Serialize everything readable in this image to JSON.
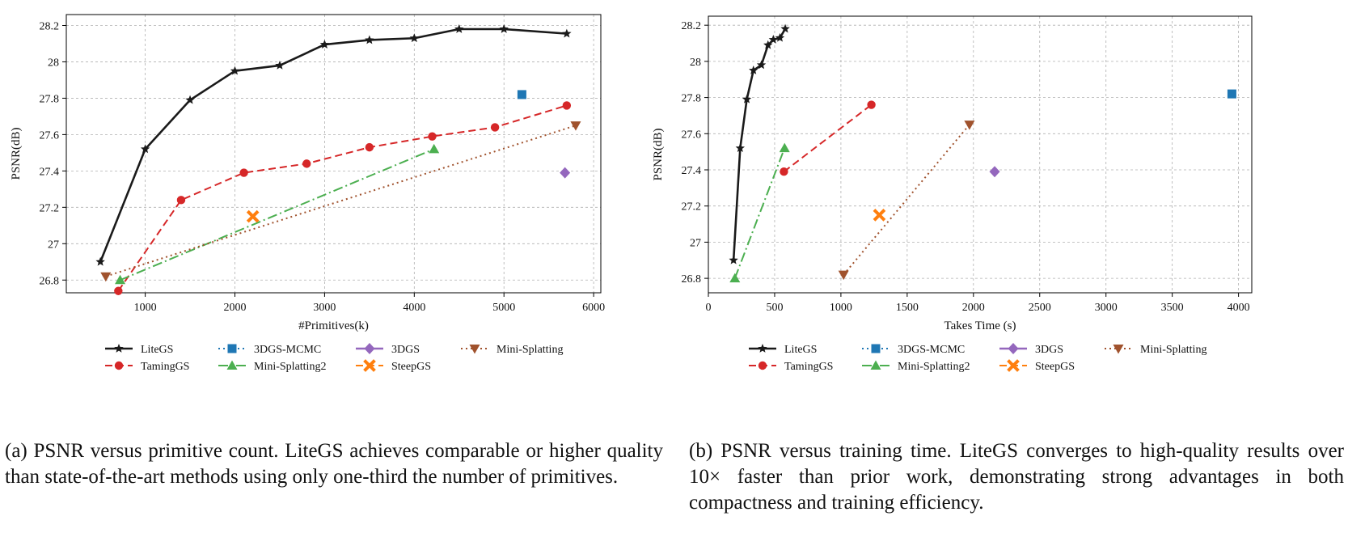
{
  "chart_data": [
    {
      "type": "line",
      "xlabel": "#Primitives(k)",
      "ylabel": "PSNR(dB)",
      "xlim": [
        120,
        6080
      ],
      "ylim": [
        26.73,
        28.26
      ],
      "xticks": [
        1000,
        2000,
        3000,
        4000,
        5000,
        6000
      ],
      "yticks": [
        26.8,
        27.0,
        27.2,
        27.4,
        27.6,
        27.8,
        28.0,
        28.2
      ],
      "grid": true,
      "legend_position": "bottom",
      "series": [
        {
          "name": "LiteGS",
          "x": [
            500,
            1000,
            1500,
            2000,
            2500,
            3000,
            3500,
            4000,
            4500,
            5000,
            5700
          ],
          "y": [
            26.9,
            27.52,
            27.79,
            27.95,
            27.98,
            28.095,
            28.12,
            28.13,
            28.18,
            28.18,
            28.155
          ]
        },
        {
          "name": "TamingGS",
          "x": [
            700,
            1400,
            2100,
            2800,
            3500,
            4200,
            4900,
            5700
          ],
          "y": [
            26.74,
            27.24,
            27.39,
            27.44,
            27.53,
            27.59,
            27.64,
            27.76
          ]
        },
        {
          "name": "3DGS-MCMC",
          "x": [
            5200
          ],
          "y": [
            27.82
          ]
        },
        {
          "name": "Mini-Splatting2",
          "x": [
            720,
            4220
          ],
          "y": [
            26.8,
            27.52
          ]
        },
        {
          "name": "3DGS",
          "x": [
            5680
          ],
          "y": [
            27.39
          ]
        },
        {
          "name": "SteepGS",
          "x": [
            2200
          ],
          "y": [
            27.15
          ]
        },
        {
          "name": "Mini-Splatting",
          "x": [
            560,
            5800
          ],
          "y": [
            26.82,
            27.65
          ]
        }
      ]
    },
    {
      "type": "line",
      "xlabel": "Takes Time (s)",
      "ylabel": "PSNR(dB)",
      "xlim": [
        0,
        4100
      ],
      "ylim": [
        26.72,
        28.25
      ],
      "xticks": [
        0,
        500,
        1000,
        1500,
        2000,
        2500,
        3000,
        3500,
        4000
      ],
      "yticks": [
        26.8,
        27.0,
        27.2,
        27.4,
        27.6,
        27.8,
        28.0,
        28.2
      ],
      "grid": true,
      "legend_position": "bottom",
      "series": [
        {
          "name": "LiteGS",
          "x": [
            190,
            240,
            290,
            340,
            400,
            450,
            490,
            540,
            580
          ],
          "y": [
            26.9,
            27.52,
            27.79,
            27.95,
            27.98,
            28.09,
            28.12,
            28.13,
            28.18
          ]
        },
        {
          "name": "TamingGS",
          "x": [
            570,
            1230
          ],
          "y": [
            27.39,
            27.76
          ]
        },
        {
          "name": "3DGS-MCMC",
          "x": [
            3950
          ],
          "y": [
            27.82
          ]
        },
        {
          "name": "Mini-Splatting2",
          "x": [
            200,
            575
          ],
          "y": [
            26.8,
            27.52
          ]
        },
        {
          "name": "3DGS",
          "x": [
            2160
          ],
          "y": [
            27.39
          ]
        },
        {
          "name": "SteepGS",
          "x": [
            1290
          ],
          "y": [
            27.15
          ]
        },
        {
          "name": "Mini-Splatting",
          "x": [
            1020,
            1970
          ],
          "y": [
            26.82,
            27.65
          ]
        }
      ]
    }
  ],
  "series_style": {
    "LiteGS": {
      "color": "#1a1a1a",
      "marker": "star",
      "dash": "solid"
    },
    "TamingGS": {
      "color": "#d62728",
      "marker": "circle",
      "dash": "dashed"
    },
    "3DGS-MCMC": {
      "color": "#1f77b4",
      "marker": "square",
      "dash": "dotted"
    },
    "Mini-Splatting2": {
      "color": "#4caf50",
      "marker": "triangle-up",
      "dash": "dashdot"
    },
    "3DGS": {
      "color": "#9467bd",
      "marker": "diamond",
      "dash": "solid"
    },
    "SteepGS": {
      "color": "#ff7f0e",
      "marker": "x-filled",
      "dash": "dashed"
    },
    "Mini-Splatting": {
      "color": "#a0522d",
      "marker": "triangle-down",
      "dash": "dotted"
    }
  },
  "captions": {
    "a": "(a) PSNR versus primitive count. LiteGS achieves comparable or higher quality than state-of-the-art methods using only one-third the number of primitives.",
    "b": "(b) PSNR versus training time. LiteGS converges to high-quality results over 10× faster than prior work, demonstrating strong advantages in both compactness and training efficiency."
  }
}
